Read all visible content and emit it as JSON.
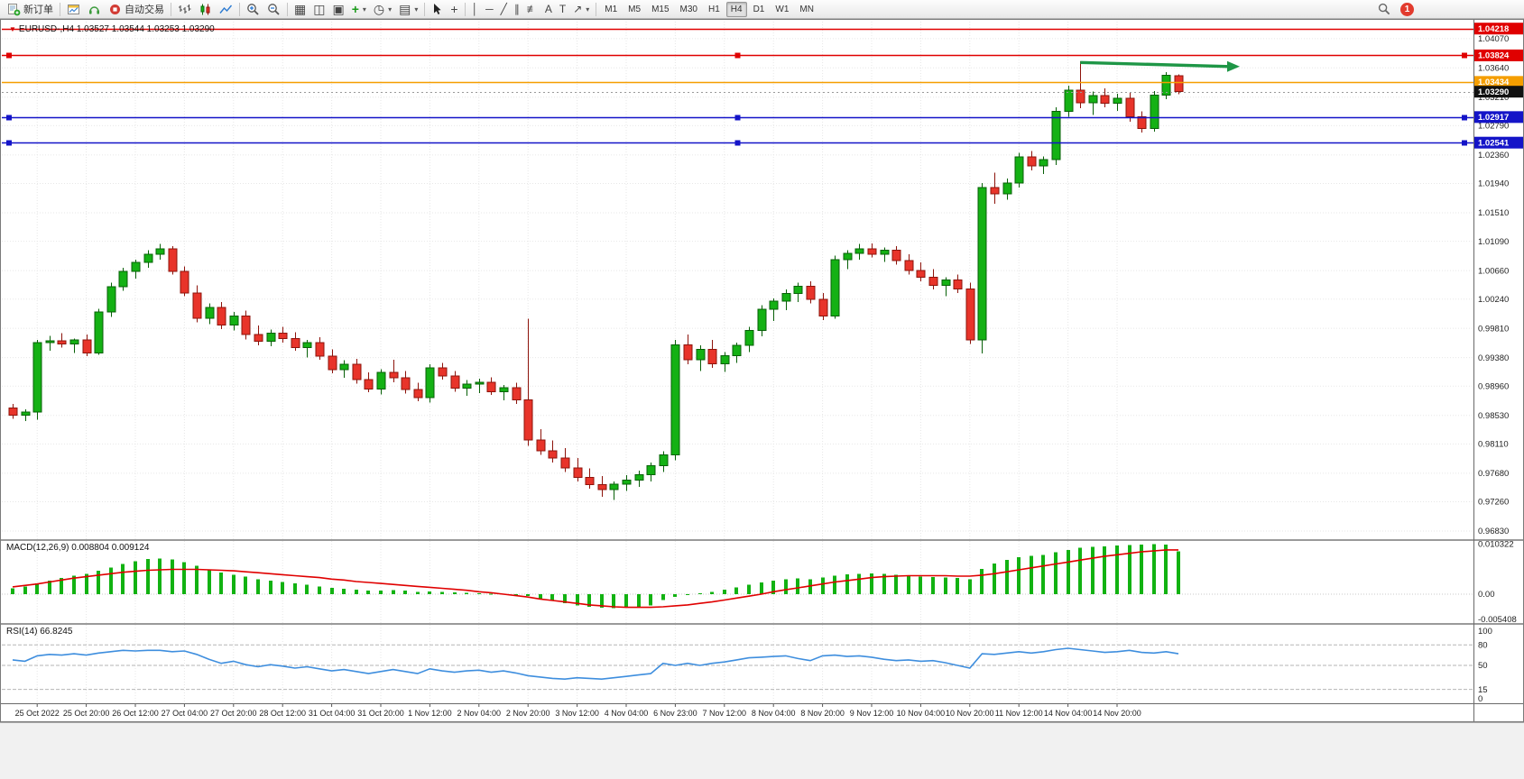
{
  "toolbar": {
    "new_order_label": "新订单",
    "autotrading_label": "自动交易",
    "timeframes": [
      "M1",
      "M5",
      "M15",
      "M30",
      "H1",
      "H4",
      "D1",
      "W1",
      "MN"
    ],
    "active_timeframe": "H4",
    "notification_count": "1"
  },
  "icons": {
    "caret": "▾",
    "marker": "▼",
    "tile": "▦",
    "arrange": "◫",
    "cascade": "▣",
    "plus": "+",
    "clock": "◷",
    "template": "▤",
    "crosshair": "+",
    "vline": "│",
    "hline": "─",
    "trendline": "╱",
    "channel": "∥",
    "fibo": "≢",
    "text": "A",
    "label": "T",
    "arrows": "↗"
  },
  "chart": {
    "header": "EURUSD-,H4  1.03527 1.03544 1.03253 1.03290"
  },
  "colors": {
    "bull": "#14b114",
    "bull_edge": "#076007",
    "bear": "#e8342a",
    "bear_edge": "#8d130b",
    "wick_grid": "#e7e7e7",
    "macd_hist": "#12b212",
    "macd_signal": "#e00000",
    "rsi_line": "#3e8ede",
    "arrow": "#1e9646",
    "axis_text": "#222222"
  },
  "chart_data": {
    "type": "candlestick",
    "symbol": "EURUSD-",
    "timeframe": "H4",
    "last_ohlc": {
      "open": "1.03527",
      "high": "1.03544",
      "low": "1.03253",
      "close": "1.03290"
    },
    "ylim": [
      0.9671,
      1.0436
    ],
    "price_axis_labels": [
      "1.04070",
      "1.03640",
      "1.03210",
      "1.02790",
      "1.02360",
      "1.01940",
      "1.01510",
      "1.01090",
      "1.00660",
      "1.00240",
      "0.99810",
      "0.99380",
      "0.98960",
      "0.98530",
      "0.98110",
      "0.97680",
      "0.97260",
      "0.96830"
    ],
    "time_labels": [
      "25 Oct 2022",
      "25 Oct 20:00",
      "26 Oct 12:00",
      "27 Oct 04:00",
      "27 Oct 20:00",
      "28 Oct 12:00",
      "31 Oct 04:00",
      "31 Oct 20:00",
      "1 Nov 12:00",
      "2 Nov 04:00",
      "2 Nov 20:00",
      "3 Nov 12:00",
      "4 Nov 04:00",
      "6 Nov 23:00",
      "7 Nov 12:00",
      "8 Nov 04:00",
      "8 Nov 20:00",
      "9 Nov 12:00",
      "10 Nov 04:00",
      "10 Nov 20:00",
      "11 Nov 12:00",
      "14 Nov 04:00",
      "14 Nov 20:00"
    ],
    "hlines": [
      {
        "price": 1.04218,
        "label": "1.04218",
        "color": "#e00000",
        "handles": false
      },
      {
        "price": 1.03824,
        "label": "1.03824",
        "color": "#e00000",
        "handles": true
      },
      {
        "price": 1.03434,
        "label": "1.03434",
        "color": "#f59e00",
        "handles": false
      },
      {
        "price": 1.0329,
        "label": "1.03290",
        "color": "#999999",
        "box": "#111111",
        "style": "dotted",
        "current": true
      },
      {
        "price": 1.02917,
        "label": "1.02917",
        "color": "#1414c8",
        "handles": true
      },
      {
        "price": 1.02541,
        "label": "1.02541",
        "color": "#1414c8",
        "handles": true
      }
    ],
    "arrow": {
      "from_candle": 87,
      "from_price": 1.0372,
      "to_candle": 100,
      "to_price": 1.0366,
      "color": "#1e9646"
    },
    "candles": [
      [
        0.9864,
        0.987,
        0.9848,
        0.9853
      ],
      [
        0.9853,
        0.9862,
        0.9845,
        0.9858
      ],
      [
        0.9858,
        0.9964,
        0.9847,
        0.996
      ],
      [
        0.996,
        0.997,
        0.9948,
        0.9963
      ],
      [
        0.9963,
        0.9974,
        0.9953,
        0.9958
      ],
      [
        0.9958,
        0.9966,
        0.9945,
        0.9964
      ],
      [
        0.9964,
        0.9972,
        0.994,
        0.9945
      ],
      [
        0.9945,
        1.001,
        0.9942,
        1.0005
      ],
      [
        1.0005,
        1.0048,
        0.9998,
        1.0042
      ],
      [
        1.0042,
        1.007,
        1.0036,
        1.0065
      ],
      [
        1.0065,
        1.0082,
        1.0054,
        1.0078
      ],
      [
        1.0078,
        1.0096,
        1.007,
        1.009
      ],
      [
        1.009,
        1.0105,
        1.0082,
        1.0098
      ],
      [
        1.0098,
        1.0102,
        1.006,
        1.0065
      ],
      [
        1.0065,
        1.0072,
        1.0028,
        1.0033
      ],
      [
        1.0033,
        1.0044,
        0.999,
        0.9996
      ],
      [
        0.9996,
        1.0018,
        0.9987,
        1.0012
      ],
      [
        1.0012,
        1.002,
        0.998,
        0.9986
      ],
      [
        0.9986,
        1.0005,
        0.9978,
        0.9999
      ],
      [
        0.9999,
        1.0007,
        0.9965,
        0.9972
      ],
      [
        0.9972,
        0.9985,
        0.9956,
        0.9962
      ],
      [
        0.9962,
        0.9979,
        0.9955,
        0.9974
      ],
      [
        0.9974,
        0.9983,
        0.996,
        0.9966
      ],
      [
        0.9966,
        0.9975,
        0.9948,
        0.9953
      ],
      [
        0.9953,
        0.9964,
        0.9938,
        0.996
      ],
      [
        0.996,
        0.9968,
        0.9935,
        0.994
      ],
      [
        0.994,
        0.995,
        0.9915,
        0.992
      ],
      [
        0.992,
        0.9934,
        0.9908,
        0.9928
      ],
      [
        0.9928,
        0.9936,
        0.99,
        0.9906
      ],
      [
        0.9906,
        0.9916,
        0.9887,
        0.9892
      ],
      [
        0.9892,
        0.9921,
        0.9884,
        0.9916
      ],
      [
        0.9916,
        0.9935,
        0.9902,
        0.9908
      ],
      [
        0.9908,
        0.9918,
        0.9885,
        0.9891
      ],
      [
        0.9891,
        0.9901,
        0.9874,
        0.9879
      ],
      [
        0.9879,
        0.9928,
        0.9872,
        0.9923
      ],
      [
        0.9923,
        0.993,
        0.9906,
        0.9911
      ],
      [
        0.9911,
        0.9918,
        0.9888,
        0.9893
      ],
      [
        0.9893,
        0.9905,
        0.9882,
        0.9899
      ],
      [
        0.9899,
        0.9907,
        0.9886,
        0.9902
      ],
      [
        0.9902,
        0.9909,
        0.9883,
        0.9888
      ],
      [
        0.9888,
        0.9898,
        0.9875,
        0.9894
      ],
      [
        0.9894,
        0.9901,
        0.987,
        0.9876
      ],
      [
        0.9876,
        0.9995,
        0.9808,
        0.9817
      ],
      [
        0.9817,
        0.9833,
        0.9795,
        0.9801
      ],
      [
        0.9801,
        0.9816,
        0.9784,
        0.979
      ],
      [
        0.979,
        0.9805,
        0.977,
        0.9776
      ],
      [
        0.9776,
        0.979,
        0.9756,
        0.9762
      ],
      [
        0.9762,
        0.9775,
        0.9745,
        0.9751
      ],
      [
        0.9751,
        0.9764,
        0.9733,
        0.9744
      ],
      [
        0.9744,
        0.9756,
        0.9729,
        0.9752
      ],
      [
        0.9752,
        0.9765,
        0.9742,
        0.9758
      ],
      [
        0.9758,
        0.9772,
        0.9748,
        0.9766
      ],
      [
        0.9766,
        0.9784,
        0.9756,
        0.9779
      ],
      [
        0.9779,
        0.98,
        0.977,
        0.9795
      ],
      [
        0.9795,
        0.9964,
        0.9787,
        0.9957
      ],
      [
        0.9957,
        0.9972,
        0.9928,
        0.9935
      ],
      [
        0.9935,
        0.9956,
        0.9918,
        0.995
      ],
      [
        0.995,
        0.9964,
        0.9923,
        0.9929
      ],
      [
        0.9929,
        0.9946,
        0.9917,
        0.9941
      ],
      [
        0.9941,
        0.996,
        0.993,
        0.9956
      ],
      [
        0.9956,
        0.9983,
        0.9946,
        0.9978
      ],
      [
        0.9978,
        1.0015,
        0.9969,
        1.0009
      ],
      [
        1.0009,
        1.0025,
        0.9992,
        1.0021
      ],
      [
        1.0021,
        1.0038,
        1.0008,
        1.0032
      ],
      [
        1.0032,
        1.0048,
        1.002,
        1.0043
      ],
      [
        1.0043,
        1.005,
        1.0018,
        1.0024
      ],
      [
        1.0024,
        1.0033,
        0.9993,
        0.9999
      ],
      [
        0.9999,
        1.0088,
        0.9995,
        1.0082
      ],
      [
        1.0082,
        1.0096,
        1.0068,
        1.0091
      ],
      [
        1.0091,
        1.0105,
        1.0082,
        1.0098
      ],
      [
        1.0098,
        1.0106,
        1.0085,
        1.009
      ],
      [
        1.009,
        1.01,
        1.0079,
        1.0096
      ],
      [
        1.0096,
        1.0102,
        1.0075,
        1.0081
      ],
      [
        1.0081,
        1.009,
        1.006,
        1.0066
      ],
      [
        1.0066,
        1.0078,
        1.005,
        1.0056
      ],
      [
        1.0056,
        1.0068,
        1.0038,
        1.0044
      ],
      [
        1.0044,
        1.0056,
        1.0028,
        1.0052
      ],
      [
        1.0052,
        1.006,
        1.0033,
        1.0039
      ],
      [
        1.0039,
        1.0048,
        0.9958,
        0.9964
      ],
      [
        0.9964,
        1.0195,
        0.9944,
        1.0188
      ],
      [
        1.0188,
        1.021,
        1.0164,
        1.0179
      ],
      [
        1.0179,
        1.0201,
        1.017,
        1.0195
      ],
      [
        1.0195,
        1.0239,
        1.0188,
        1.0233
      ],
      [
        1.0233,
        1.0242,
        1.0213,
        1.022
      ],
      [
        1.022,
        1.0234,
        1.0208,
        1.0229
      ],
      [
        1.0229,
        1.0306,
        1.0221,
        1.03
      ],
      [
        1.03,
        1.0338,
        1.0292,
        1.0331
      ],
      [
        1.0331,
        1.0374,
        1.0305,
        1.0313
      ],
      [
        1.0313,
        1.0329,
        1.0295,
        1.0323
      ],
      [
        1.0323,
        1.0334,
        1.0306,
        1.0312
      ],
      [
        1.0312,
        1.0326,
        1.0301,
        1.0319
      ],
      [
        1.0319,
        1.0328,
        1.0285,
        1.0292
      ],
      [
        1.0292,
        1.03,
        1.0269,
        1.0275
      ],
      [
        1.0275,
        1.033,
        1.027,
        1.0324
      ],
      [
        1.0324,
        1.0358,
        1.0318,
        1.0353
      ],
      [
        1.03527,
        1.03544,
        1.03253,
        1.0329
      ]
    ],
    "macd": {
      "label": "MACD(12,26,9) 0.008804 0.009124",
      "ylim": [
        -0.00593,
        0.01093
      ],
      "axis_labels": [
        "0.010322",
        "0.00",
        "-0.005408"
      ],
      "hist": [
        0.0012,
        0.0016,
        0.0022,
        0.0028,
        0.0033,
        0.0038,
        0.0042,
        0.0048,
        0.0055,
        0.0062,
        0.0068,
        0.0072,
        0.0073,
        0.0071,
        0.0066,
        0.0058,
        0.005,
        0.0044,
        0.004,
        0.0036,
        0.0031,
        0.0028,
        0.0025,
        0.0022,
        0.0019,
        0.0016,
        0.0013,
        0.0011,
        0.0009,
        0.0007,
        0.0007,
        0.0008,
        0.0007,
        0.0005,
        0.0006,
        0.0005,
        0.0004,
        0.0003,
        0.0002,
        0.0001,
        0.0001,
        0.0,
        -0.0004,
        -0.0009,
        -0.0014,
        -0.0019,
        -0.0023,
        -0.0026,
        -0.0028,
        -0.0029,
        -0.0028,
        -0.0026,
        -0.0023,
        -0.0012,
        -0.0006,
        -0.0002,
        0.0002,
        0.0005,
        0.0009,
        0.0014,
        0.0019,
        0.0024,
        0.0028,
        0.0031,
        0.0032,
        0.0031,
        0.0034,
        0.0038,
        0.0041,
        0.0042,
        0.0043,
        0.0042,
        0.004,
        0.0038,
        0.0036,
        0.0035,
        0.0034,
        0.0033,
        0.0031,
        0.0052,
        0.0063,
        0.007,
        0.0076,
        0.0079,
        0.0081,
        0.0086,
        0.0091,
        0.0095,
        0.0097,
        0.0098,
        0.01,
        0.0101,
        0.0102,
        0.0103,
        0.0102,
        0.0088
      ],
      "signal": [
        0.0015,
        0.0018,
        0.0021,
        0.0025,
        0.0029,
        0.0033,
        0.0036,
        0.0039,
        0.0042,
        0.0045,
        0.0047,
        0.0049,
        0.005,
        0.0051,
        0.0051,
        0.0051,
        0.005,
        0.0049,
        0.0048,
        0.0046,
        0.0044,
        0.0042,
        0.004,
        0.0038,
        0.0036,
        0.0034,
        0.0031,
        0.0029,
        0.0026,
        0.0024,
        0.0022,
        0.002,
        0.0018,
        0.0016,
        0.0014,
        0.0012,
        0.001,
        0.0008,
        0.0005,
        0.0003,
        0.0,
        -0.0003,
        -0.0006,
        -0.001,
        -0.0013,
        -0.0016,
        -0.0019,
        -0.0022,
        -0.0024,
        -0.0026,
        -0.0027,
        -0.0027,
        -0.0027,
        -0.0026,
        -0.0024,
        -0.0022,
        -0.0019,
        -0.0016,
        -0.0012,
        -0.0008,
        -0.0004,
        0.0,
        0.0005,
        0.0009,
        0.0013,
        0.0017,
        0.0021,
        0.0025,
        0.0028,
        0.0031,
        0.0034,
        0.0036,
        0.0037,
        0.0038,
        0.0038,
        0.0038,
        0.0038,
        0.0037,
        0.0037,
        0.0039,
        0.0042,
        0.0046,
        0.005,
        0.0054,
        0.0058,
        0.0062,
        0.0066,
        0.007,
        0.0074,
        0.0078,
        0.0081,
        0.0084,
        0.0087,
        0.0089,
        0.0091,
        0.0091
      ]
    },
    "rsi": {
      "label": "RSI(14) 66.8245",
      "ylim": [
        0,
        100
      ],
      "levels": [
        80,
        50,
        15
      ],
      "axis_labels": [
        "100",
        "80",
        "50",
        "15",
        "0"
      ],
      "values": [
        58,
        56,
        64,
        66,
        65,
        67,
        65,
        68,
        70,
        72,
        71,
        72,
        72,
        70,
        71,
        66,
        59,
        53,
        56,
        51,
        48,
        51,
        49,
        46,
        48,
        45,
        42,
        44,
        41,
        38,
        41,
        44,
        41,
        38,
        45,
        42,
        40,
        42,
        43,
        40,
        42,
        39,
        35,
        33,
        31,
        30,
        32,
        31,
        30,
        32,
        34,
        36,
        38,
        53,
        50,
        53,
        50,
        53,
        55,
        58,
        61,
        62,
        63,
        64,
        60,
        57,
        64,
        65,
        63,
        64,
        62,
        59,
        57,
        58,
        56,
        57,
        54,
        50,
        46,
        67,
        66,
        68,
        70,
        68,
        70,
        73,
        75,
        73,
        71,
        69,
        70,
        72,
        69,
        68,
        70,
        67
      ]
    }
  }
}
